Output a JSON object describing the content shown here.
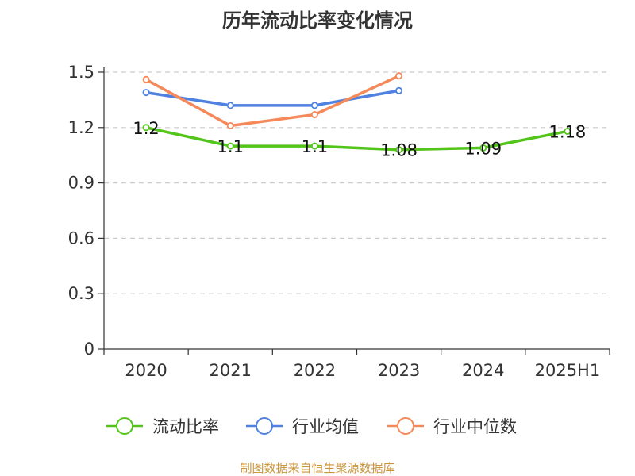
{
  "chart_data": {
    "type": "line",
    "title": "历年流动比率变化情况",
    "categories": [
      "2020",
      "2021",
      "2022",
      "2023",
      "2024",
      "2025H1"
    ],
    "ylim": [
      0,
      1.5
    ],
    "yticks": [
      "0",
      "0.3",
      "0.6",
      "0.9",
      "1.2",
      "1.5"
    ],
    "grid": true,
    "legend_position": "bottom",
    "series": [
      {
        "name": "流动比率",
        "color": "#52c41a",
        "values": [
          1.2,
          1.1,
          1.1,
          1.08,
          1.09,
          1.18
        ],
        "labels": [
          "1.2",
          "1.1",
          "1.1",
          "1.08",
          "1.09",
          "1.18"
        ]
      },
      {
        "name": "行业均值",
        "color": "#4f81e0",
        "values": [
          1.39,
          1.32,
          1.32,
          1.4,
          null,
          null
        ]
      },
      {
        "name": "行业中位数",
        "color": "#f5895a",
        "values": [
          1.46,
          1.21,
          1.27,
          1.48,
          null,
          null
        ]
      }
    ]
  },
  "source": "制图数据来自恒生聚源数据库"
}
